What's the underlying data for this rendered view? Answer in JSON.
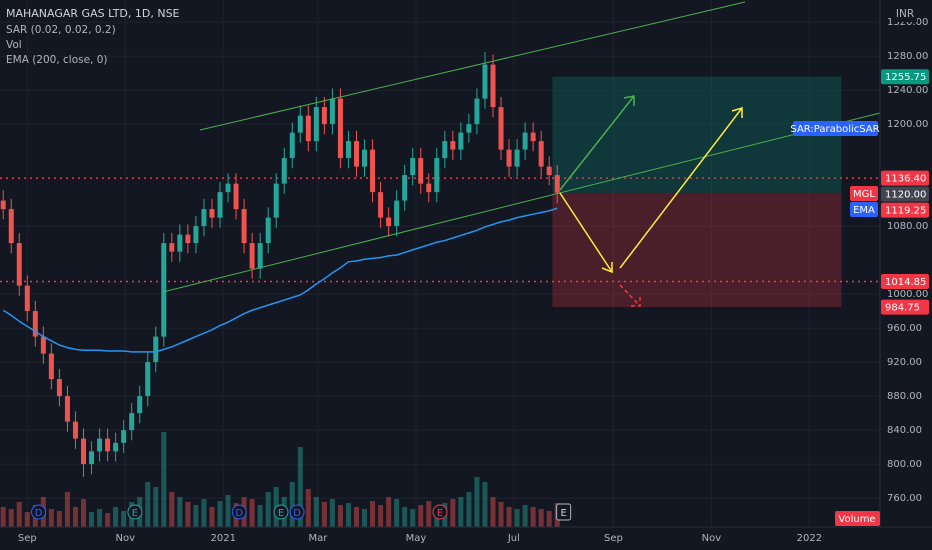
{
  "chart_data": {
    "type": "candlestick",
    "title": "MAHANAGAR GAS LTD, 1D, NSE",
    "indicators": [
      "SAR (0.02, 0.02, 0.2)",
      "Vol",
      "EMA (200, close, 0)"
    ],
    "currency": "INR",
    "volume_label": "Volume",
    "sar_tag": "SAR:ParabolicSAR",
    "symbol_tag": "MGL",
    "ema_tag": "EMA",
    "xlim": [
      0,
      548
    ],
    "ylim": [
      726,
      1346
    ],
    "xticks": [
      {
        "value": 17,
        "label": "Sep"
      },
      {
        "value": 78,
        "label": "Nov"
      },
      {
        "value": 139,
        "label": "2021"
      },
      {
        "value": 198,
        "label": "Mar"
      },
      {
        "value": 259,
        "label": "May"
      },
      {
        "value": 320,
        "label": "Jul"
      },
      {
        "value": 382,
        "label": "Sep"
      },
      {
        "value": 443,
        "label": "Nov"
      },
      {
        "value": 504,
        "label": "2022"
      }
    ],
    "yticks": [
      {
        "value": 1320,
        "label": "1320.00"
      },
      {
        "value": 1280,
        "label": "1280.00"
      },
      {
        "value": 1240,
        "label": "1240.00"
      },
      {
        "value": 1200,
        "label": "1200.00"
      },
      {
        "value": 1080,
        "label": "1080.00"
      },
      {
        "value": 1000,
        "label": "1000.00"
      },
      {
        "value": 960,
        "label": "960.00"
      },
      {
        "value": 920,
        "label": "920.00"
      },
      {
        "value": 880,
        "label": "880.00"
      },
      {
        "value": 840,
        "label": "840.00"
      },
      {
        "value": 800,
        "label": "800.00"
      },
      {
        "value": 760,
        "label": "760.00"
      }
    ],
    "grid": true,
    "up_color": "#26a69a",
    "down_color": "#ef5350",
    "ema_color": "#2196f3",
    "x": [
      2,
      7,
      12,
      17,
      22,
      27,
      32,
      37,
      42,
      47,
      52,
      57,
      62,
      67,
      72,
      77,
      82,
      87,
      92,
      97,
      102,
      107,
      112,
      117,
      122,
      127,
      132,
      137,
      142,
      147,
      152,
      157,
      162,
      167,
      172,
      177,
      182,
      187,
      192,
      197,
      202,
      207,
      212,
      217,
      222,
      227,
      232,
      237,
      242,
      247,
      252,
      257,
      262,
      267,
      272,
      277,
      282,
      287,
      292,
      297,
      302,
      307,
      312,
      317,
      322,
      327,
      332,
      337,
      342,
      347
    ],
    "open": [
      1110,
      1100,
      1060,
      1010,
      980,
      950,
      930,
      900,
      880,
      850,
      830,
      800,
      815,
      830,
      815,
      825,
      840,
      860,
      880,
      920,
      950,
      1060,
      1050,
      1070,
      1060,
      1080,
      1100,
      1090,
      1120,
      1130,
      1100,
      1060,
      1030,
      1060,
      1090,
      1130,
      1160,
      1190,
      1210,
      1180,
      1220,
      1200,
      1230,
      1160,
      1180,
      1150,
      1170,
      1120,
      1090,
      1080,
      1110,
      1140,
      1160,
      1130,
      1120,
      1160,
      1180,
      1170,
      1190,
      1200,
      1230,
      1270,
      1220,
      1170,
      1150,
      1170,
      1190,
      1180,
      1150,
      1140
    ],
    "high": [
      1122,
      1112,
      1072,
      1022,
      992,
      962,
      942,
      912,
      892,
      862,
      842,
      827,
      842,
      842,
      837,
      852,
      872,
      892,
      932,
      962,
      1072,
      1072,
      1082,
      1082,
      1092,
      1112,
      1112,
      1132,
      1142,
      1142,
      1112,
      1072,
      1072,
      1102,
      1142,
      1172,
      1202,
      1222,
      1222,
      1232,
      1232,
      1242,
      1242,
      1192,
      1192,
      1182,
      1182,
      1132,
      1102,
      1122,
      1152,
      1172,
      1172,
      1142,
      1172,
      1192,
      1192,
      1202,
      1212,
      1242,
      1285,
      1282,
      1232,
      1182,
      1182,
      1202,
      1202,
      1192,
      1162,
      1152
    ],
    "low": [
      1088,
      1048,
      998,
      968,
      938,
      918,
      888,
      868,
      838,
      818,
      785,
      788,
      803,
      803,
      803,
      813,
      828,
      848,
      868,
      908,
      938,
      1038,
      1038,
      1048,
      1048,
      1068,
      1078,
      1078,
      1108,
      1088,
      1048,
      1018,
      1018,
      1048,
      1078,
      1118,
      1148,
      1178,
      1168,
      1168,
      1188,
      1188,
      1148,
      1148,
      1138,
      1138,
      1108,
      1078,
      1068,
      1068,
      1098,
      1128,
      1118,
      1108,
      1108,
      1148,
      1158,
      1158,
      1178,
      1188,
      1218,
      1208,
      1158,
      1138,
      1138,
      1158,
      1168,
      1138,
      1128,
      1107
    ],
    "close": [
      1100,
      1060,
      1010,
      980,
      950,
      930,
      900,
      880,
      850,
      830,
      800,
      815,
      830,
      815,
      825,
      840,
      860,
      880,
      920,
      950,
      1060,
      1050,
      1070,
      1060,
      1080,
      1100,
      1090,
      1120,
      1130,
      1100,
      1060,
      1030,
      1060,
      1090,
      1130,
      1160,
      1190,
      1210,
      1180,
      1220,
      1200,
      1230,
      1160,
      1180,
      1150,
      1170,
      1120,
      1090,
      1080,
      1110,
      1140,
      1160,
      1130,
      1120,
      1160,
      1180,
      1170,
      1190,
      1200,
      1230,
      1270,
      1220,
      1170,
      1150,
      1170,
      1190,
      1180,
      1150,
      1140,
      1119.25
    ],
    "volume": [
      20,
      18,
      25,
      15,
      22,
      30,
      18,
      16,
      35,
      20,
      28,
      15,
      18,
      14,
      20,
      16,
      25,
      30,
      45,
      40,
      95,
      35,
      30,
      25,
      22,
      28,
      20,
      26,
      32,
      24,
      30,
      28,
      22,
      35,
      40,
      30,
      45,
      80,
      38,
      30,
      25,
      28,
      22,
      24,
      20,
      18,
      26,
      22,
      30,
      28,
      20,
      18,
      22,
      26,
      20,
      24,
      28,
      30,
      35,
      50,
      45,
      30,
      25,
      20,
      18,
      22,
      20,
      18,
      16,
      24
    ],
    "ema": [
      981,
      975,
      968,
      962,
      956,
      950,
      945,
      940,
      937,
      935,
      934,
      934,
      934,
      933,
      933,
      933,
      932,
      932,
      932,
      932,
      935,
      938,
      942,
      946,
      950,
      954,
      958,
      963,
      967,
      972,
      977,
      981,
      984,
      987,
      990,
      993,
      996,
      999,
      1005,
      1012,
      1018,
      1025,
      1031,
      1038,
      1039,
      1041,
      1042,
      1043,
      1045,
      1046,
      1049,
      1052,
      1055,
      1058,
      1061,
      1063,
      1066,
      1069,
      1072,
      1075,
      1079,
      1082,
      1085,
      1087,
      1090,
      1092,
      1094,
      1096,
      1098,
      1101
    ],
    "events": [
      {
        "x": 24,
        "label": "D"
      },
      {
        "x": 84,
        "label": "E"
      },
      {
        "x": 149,
        "label": "D"
      },
      {
        "x": 175,
        "label": "E"
      },
      {
        "x": 185,
        "label": "D"
      },
      {
        "x": 274,
        "label": "E"
      },
      {
        "x": 351,
        "label": "E"
      }
    ],
    "position": {
      "start": 344,
      "end": 524,
      "target": 1255.75,
      "entry": 1119.25,
      "stop": 984.75
    },
    "price_labels": [
      {
        "value": 1255.75,
        "label": "1255.75",
        "color": "#089981"
      },
      {
        "value": 1136.4,
        "label": "1136.40",
        "color": "#f23645",
        "line": true
      },
      {
        "value": 1120,
        "label": "1120.00",
        "color": "#434651"
      },
      {
        "value": 1119.25,
        "label": "1119.25",
        "color": "#f23645"
      },
      {
        "value": 1014.85,
        "label": "1014.85",
        "color": "#f23645",
        "line": true
      },
      {
        "value": 984.75,
        "label": "984.75",
        "color": "#f23645"
      }
    ]
  }
}
